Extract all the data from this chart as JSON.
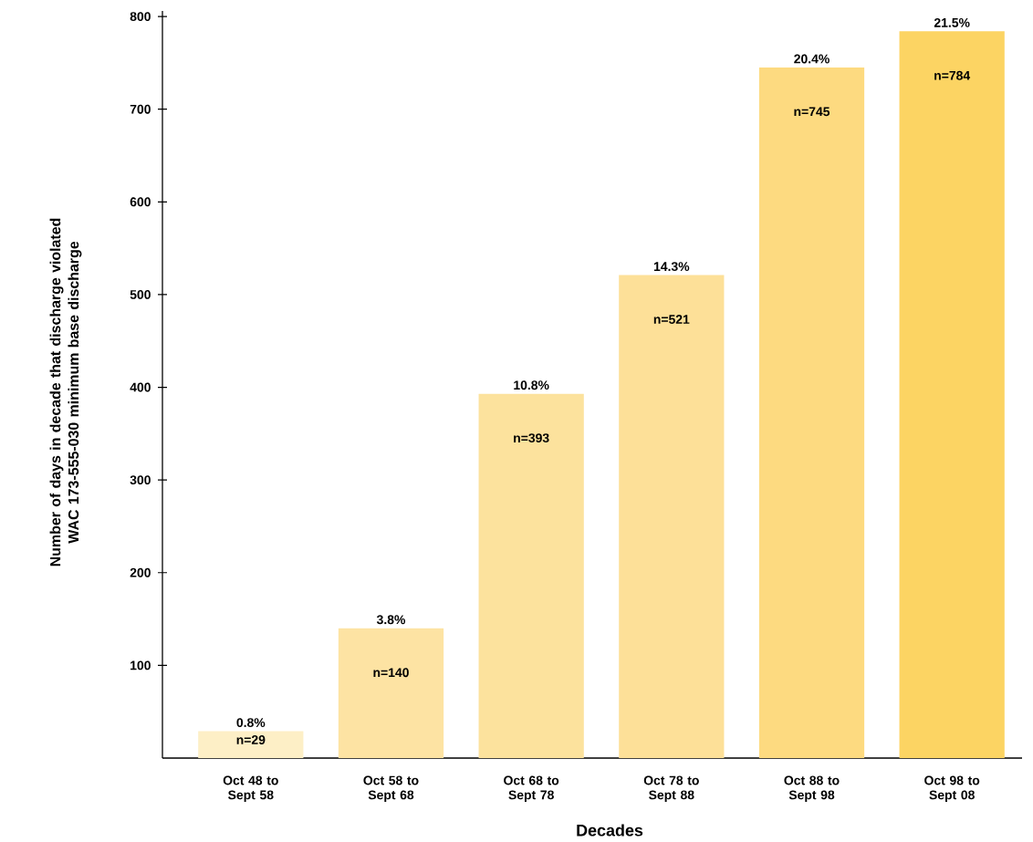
{
  "chart_data": {
    "type": "bar",
    "xlabel": "Decades",
    "ylabel": "Number of days in decade that discharge violated WAC 173-555-030 minimum base discharge",
    "categories": [
      "Oct 48 to Sept 58",
      "Oct 58 to Sept 68",
      "Oct 68 to Sept 78",
      "Oct 78 to Sept 88",
      "Oct 88 to Sept 98",
      "Oct 98 to Sept 08"
    ],
    "values": [
      29,
      140,
      393,
      521,
      745,
      784
    ],
    "colors": [
      "#fdefc6",
      "#fde3a3",
      "#fce29d",
      "#fde098",
      "#fdda80",
      "#fcd463"
    ],
    "value_labels": [
      "n=29",
      "n=140",
      "n=393",
      "n=521",
      "n=745",
      "n=784"
    ],
    "annotations": [
      {
        "text": "0.8%",
        "x": "Oct 48 to Sept 58",
        "y": 29
      },
      {
        "text": "3.8%",
        "x": "Oct 58 to Sept 68",
        "y": 140
      },
      {
        "text": "10.8%",
        "x": "Oct 68 to Sept 78",
        "y": 393
      },
      {
        "text": "14.3%",
        "x": "Oct 78 to Sept 88",
        "y": 521
      },
      {
        "text": "20.4%",
        "x": "Oct 88 to Sept 98",
        "y": 745
      },
      {
        "text": "21.5%",
        "x": "Oct 98 to Sept 08",
        "y": 784
      }
    ],
    "ylim": [
      0,
      806
    ],
    "yticks": [
      100,
      200,
      300,
      400,
      500,
      600,
      700,
      800
    ]
  }
}
